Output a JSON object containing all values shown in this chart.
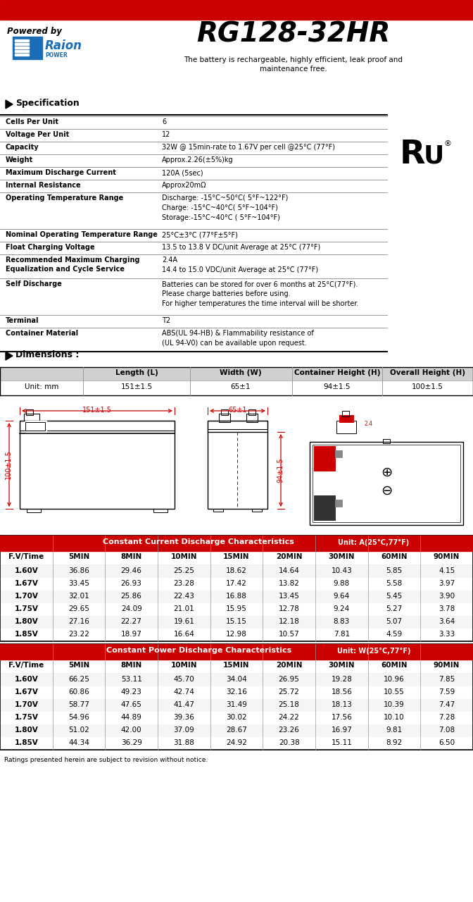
{
  "model": "RG128-32HR",
  "powered_by": "Powered by",
  "subtitle": "The battery is rechargeable, highly efficient, leak proof and\nmaintenance free.",
  "section_specification": "Specification",
  "section_dimensions": "Dimensions :",
  "spec_rows": [
    [
      "Cells Per Unit",
      "6"
    ],
    [
      "Voltage Per Unit",
      "12"
    ],
    [
      "Capacity",
      "32W @ 15min-rate to 1.67V per cell @25°C (77°F)"
    ],
    [
      "Weight",
      "Approx.2.26(±5%)kg"
    ],
    [
      "Maximum Discharge Current",
      "120A (5sec)"
    ],
    [
      "Internal Resistance",
      "Approx20mΩ"
    ],
    [
      "Operating Temperature Range",
      "Discharge: -15°C~50°C( 5°F~122°F)\nCharge: -15°C~40°C( 5°F~104°F)\nStorage:-15°C~40°C ( 5°F~104°F)"
    ],
    [
      "Nominal Operating Temperature Range",
      "25°C±3°C (77°F±5°F)"
    ],
    [
      "Float Charging Voltage",
      "13.5 to 13.8 V DC/unit Average at 25°C (77°F)"
    ],
    [
      "Recommended Maximum Charging\nEqualization and Cycle Service",
      "2.4A\n14.4 to 15.0 VDC/unit Average at 25°C (77°F)"
    ],
    [
      "Self Discharge",
      "Batteries can be stored for over 6 months at 25°C(77°F).\nPlease charge batteries before using.\nFor higher temperatures the time interval will be shorter."
    ],
    [
      "Terminal",
      "T2"
    ],
    [
      "Container Material",
      "ABS(UL 94-HB) & Flammability resistance of\n(UL 94-V0) can be available upon request."
    ]
  ],
  "dim_headers": [
    "",
    "Length (L)",
    "Width (W)",
    "Container Height (H)",
    "Overall Height (H)"
  ],
  "dim_row": [
    "Unit: mm",
    "151±1.5",
    "65±1",
    "94±1.5",
    "100±1.5"
  ],
  "cc_title": "Constant Current Discharge Characteristics",
  "cc_unit": "Unit: A(25°C,77°F)",
  "cc_headers": [
    "F.V/Time",
    "5MIN",
    "8MIN",
    "10MIN",
    "15MIN",
    "20MIN",
    "30MIN",
    "60MIN",
    "90MIN"
  ],
  "cc_data": [
    [
      "1.60V",
      "36.86",
      "29.46",
      "25.25",
      "18.62",
      "14.64",
      "10.43",
      "5.85",
      "4.15"
    ],
    [
      "1.67V",
      "33.45",
      "26.93",
      "23.28",
      "17.42",
      "13.82",
      "9.88",
      "5.58",
      "3.97"
    ],
    [
      "1.70V",
      "32.01",
      "25.86",
      "22.43",
      "16.88",
      "13.45",
      "9.64",
      "5.45",
      "3.90"
    ],
    [
      "1.75V",
      "29.65",
      "24.09",
      "21.01",
      "15.95",
      "12.78",
      "9.24",
      "5.27",
      "3.78"
    ],
    [
      "1.80V",
      "27.16",
      "22.27",
      "19.61",
      "15.15",
      "12.18",
      "8.83",
      "5.07",
      "3.64"
    ],
    [
      "1.85V",
      "23.22",
      "18.97",
      "16.64",
      "12.98",
      "10.57",
      "7.81",
      "4.59",
      "3.33"
    ]
  ],
  "cp_title": "Constant Power Discharge Characteristics",
  "cp_unit": "Unit: W(25°C,77°F)",
  "cp_headers": [
    "F.V/Time",
    "5MIN",
    "8MIN",
    "10MIN",
    "15MIN",
    "20MIN",
    "30MIN",
    "60MIN",
    "90MIN"
  ],
  "cp_data": [
    [
      "1.60V",
      "66.25",
      "53.11",
      "45.70",
      "34.04",
      "26.95",
      "19.28",
      "10.96",
      "7.85"
    ],
    [
      "1.67V",
      "60.86",
      "49.23",
      "42.74",
      "32.16",
      "25.72",
      "18.56",
      "10.55",
      "7.59"
    ],
    [
      "1.70V",
      "58.77",
      "47.65",
      "41.47",
      "31.49",
      "25.18",
      "18.13",
      "10.39",
      "7.47"
    ],
    [
      "1.75V",
      "54.96",
      "44.89",
      "39.36",
      "30.02",
      "24.22",
      "17.56",
      "10.10",
      "7.28"
    ],
    [
      "1.80V",
      "51.02",
      "42.00",
      "37.09",
      "28.67",
      "23.26",
      "16.97",
      "9.81",
      "7.08"
    ],
    [
      "1.85V",
      "44.34",
      "36.29",
      "31.88",
      "24.92",
      "20.38",
      "15.11",
      "8.92",
      "6.50"
    ]
  ],
  "footer": "Ratings presented herein are subject to revision without notice.",
  "red_color": "#CC0000",
  "table_header_bg": "#CC0000",
  "dim_label_151": "151±1.5",
  "dim_label_65": "65±1",
  "dim_label_100": "100±1.5",
  "dim_label_94": "94±1.5"
}
